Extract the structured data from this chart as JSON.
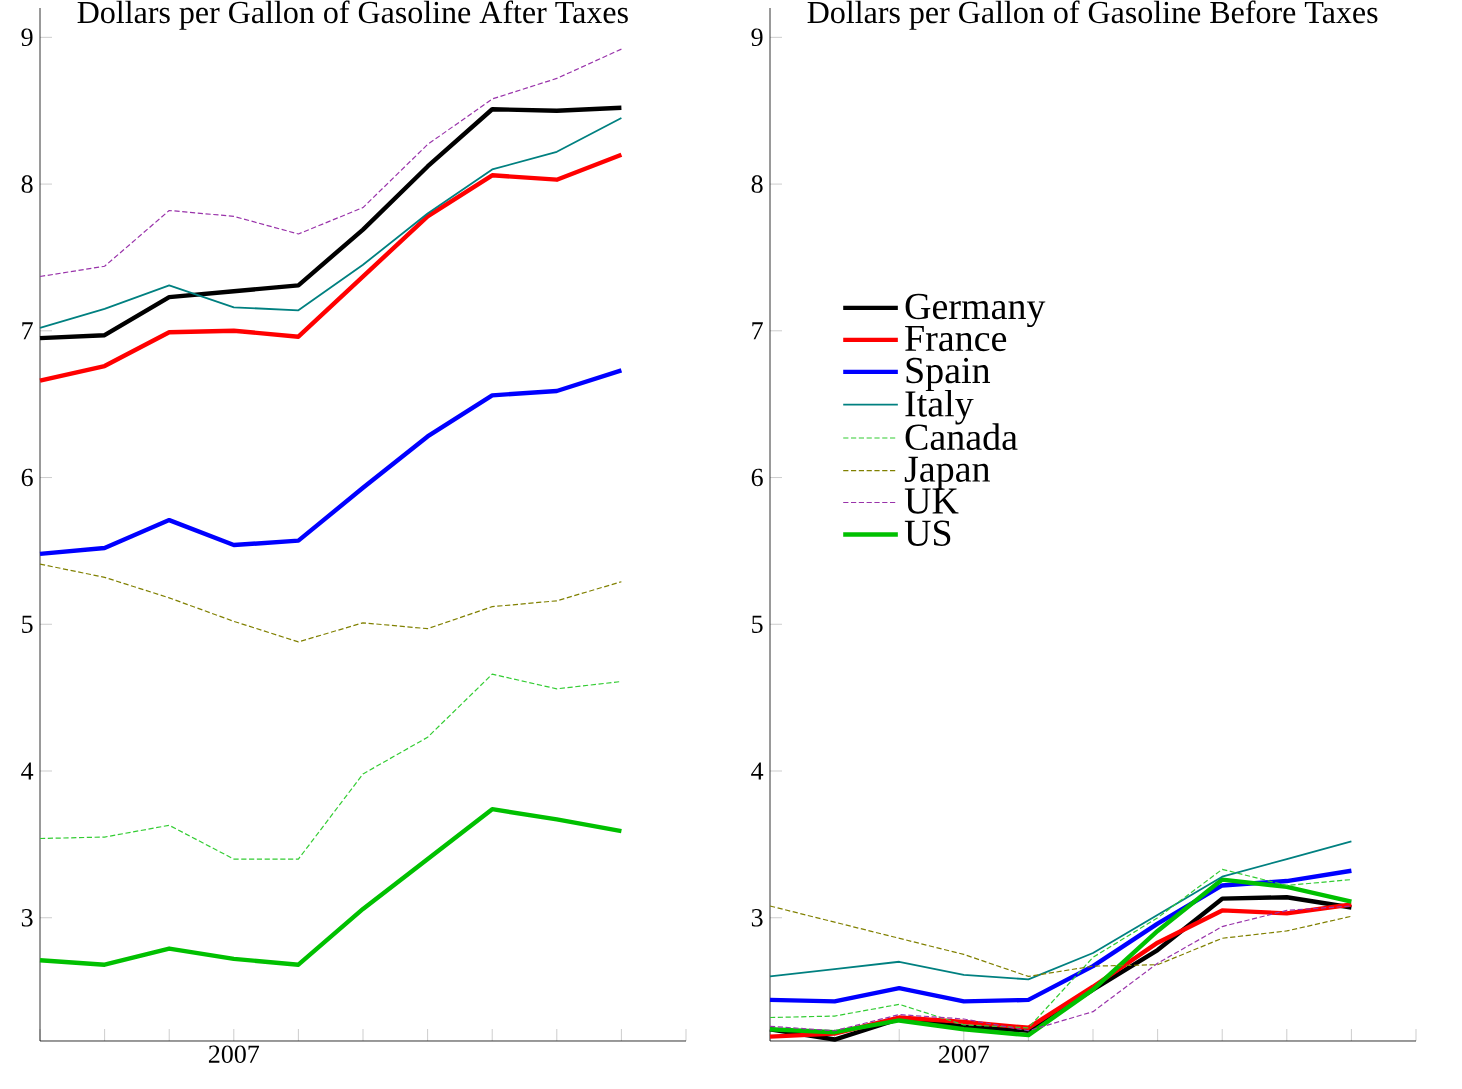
{
  "chart_data": [
    {
      "type": "line",
      "title": "Dollars per Gallon of Gasoline After Taxes",
      "categories": [
        null,
        null,
        null,
        "2007",
        null,
        null,
        null,
        null,
        null,
        null
      ],
      "ylim": [
        2.16,
        9.2
      ],
      "yticks": [
        3,
        4,
        5,
        6,
        7,
        8,
        9
      ],
      "grid": false,
      "legend": false,
      "series": [
        {
          "color": "#000000",
          "line_style": "solid",
          "values": [
            6.95,
            6.97,
            7.23,
            7.27,
            7.31,
            7.69,
            8.12,
            8.51,
            8.5,
            8.52
          ]
        },
        {
          "color": "#ff0000",
          "line_style": "solid",
          "values": [
            6.66,
            6.76,
            6.99,
            7.0,
            6.96,
            7.37,
            7.78,
            8.06,
            8.03,
            8.2
          ]
        },
        {
          "color": "#0000ff",
          "line_style": "solid",
          "values": [
            5.48,
            5.52,
            5.71,
            5.54,
            5.57,
            5.93,
            6.28,
            6.56,
            6.59,
            6.73
          ]
        },
        {
          "color": "#008080",
          "line_style": "solid",
          "values": [
            7.02,
            7.15,
            7.31,
            7.16,
            7.14,
            7.45,
            7.8,
            8.1,
            8.22,
            8.45
          ]
        },
        {
          "color": "#33cc33",
          "line_style": "dashed",
          "values": [
            3.54,
            3.55,
            3.63,
            3.4,
            3.4,
            3.98,
            4.23,
            4.66,
            4.56,
            4.61
          ]
        },
        {
          "color": "#808000",
          "line_style": "dashed",
          "values": [
            5.41,
            5.32,
            5.18,
            5.02,
            4.88,
            5.01,
            4.97,
            5.12,
            5.16,
            5.29
          ]
        },
        {
          "color": "#9933aa",
          "line_style": "dashed",
          "values": [
            7.37,
            7.44,
            7.82,
            7.78,
            7.66,
            7.84,
            8.27,
            8.58,
            8.72,
            8.92
          ]
        },
        {
          "color": "#00c000",
          "line_style": "solid",
          "values": [
            2.71,
            2.68,
            2.79,
            2.72,
            2.68,
            3.06,
            3.4,
            3.74,
            3.67,
            3.59
          ]
        }
      ]
    },
    {
      "type": "line",
      "title": "Dollars per Gallon of Gasoline Before Taxes",
      "categories": [
        null,
        null,
        null,
        "2007",
        null,
        null,
        null,
        null,
        null,
        null
      ],
      "ylim": [
        2.16,
        9.2
      ],
      "yticks": [
        3,
        4,
        5,
        6,
        7,
        8,
        9
      ],
      "grid": false,
      "legend": "left",
      "series": [
        {
          "name": "Germany",
          "color": "#000000",
          "line_style": "solid",
          "values": [
            2.24,
            2.17,
            2.31,
            2.26,
            2.23,
            2.51,
            2.78,
            3.13,
            3.14,
            3.07
          ]
        },
        {
          "name": "France",
          "color": "#ff0000",
          "line_style": "solid",
          "values": [
            2.19,
            2.21,
            2.32,
            2.29,
            2.25,
            2.53,
            2.83,
            3.05,
            3.03,
            3.09
          ]
        },
        {
          "name": "Spain",
          "color": "#0000ff",
          "line_style": "solid",
          "values": [
            2.44,
            2.43,
            2.52,
            2.43,
            2.44,
            2.67,
            2.96,
            3.22,
            3.25,
            3.32
          ]
        },
        {
          "name": "Italy",
          "color": "#008080",
          "line_style": "solid",
          "values": [
            2.6,
            2.65,
            2.7,
            2.61,
            2.58,
            2.76,
            3.02,
            3.28,
            3.4,
            3.52
          ]
        },
        {
          "name": "Canada",
          "color": "#33cc33",
          "line_style": "dashed",
          "values": [
            2.32,
            2.33,
            2.41,
            2.27,
            2.25,
            2.73,
            3.0,
            3.33,
            3.22,
            3.26
          ]
        },
        {
          "name": "Japan",
          "color": "#808000",
          "line_style": "dashed",
          "values": [
            3.08,
            2.97,
            2.86,
            2.75,
            2.6,
            2.67,
            2.68,
            2.86,
            2.91,
            3.01
          ]
        },
        {
          "name": "UK",
          "color": "#9933aa",
          "line_style": "dashed",
          "values": [
            2.26,
            2.23,
            2.34,
            2.31,
            2.23,
            2.36,
            2.69,
            2.94,
            3.05,
            3.08
          ]
        },
        {
          "name": "US",
          "color": "#00c000",
          "line_style": "solid",
          "values": [
            2.24,
            2.22,
            2.3,
            2.24,
            2.2,
            2.51,
            2.91,
            3.26,
            3.21,
            3.11
          ]
        }
      ]
    }
  ]
}
